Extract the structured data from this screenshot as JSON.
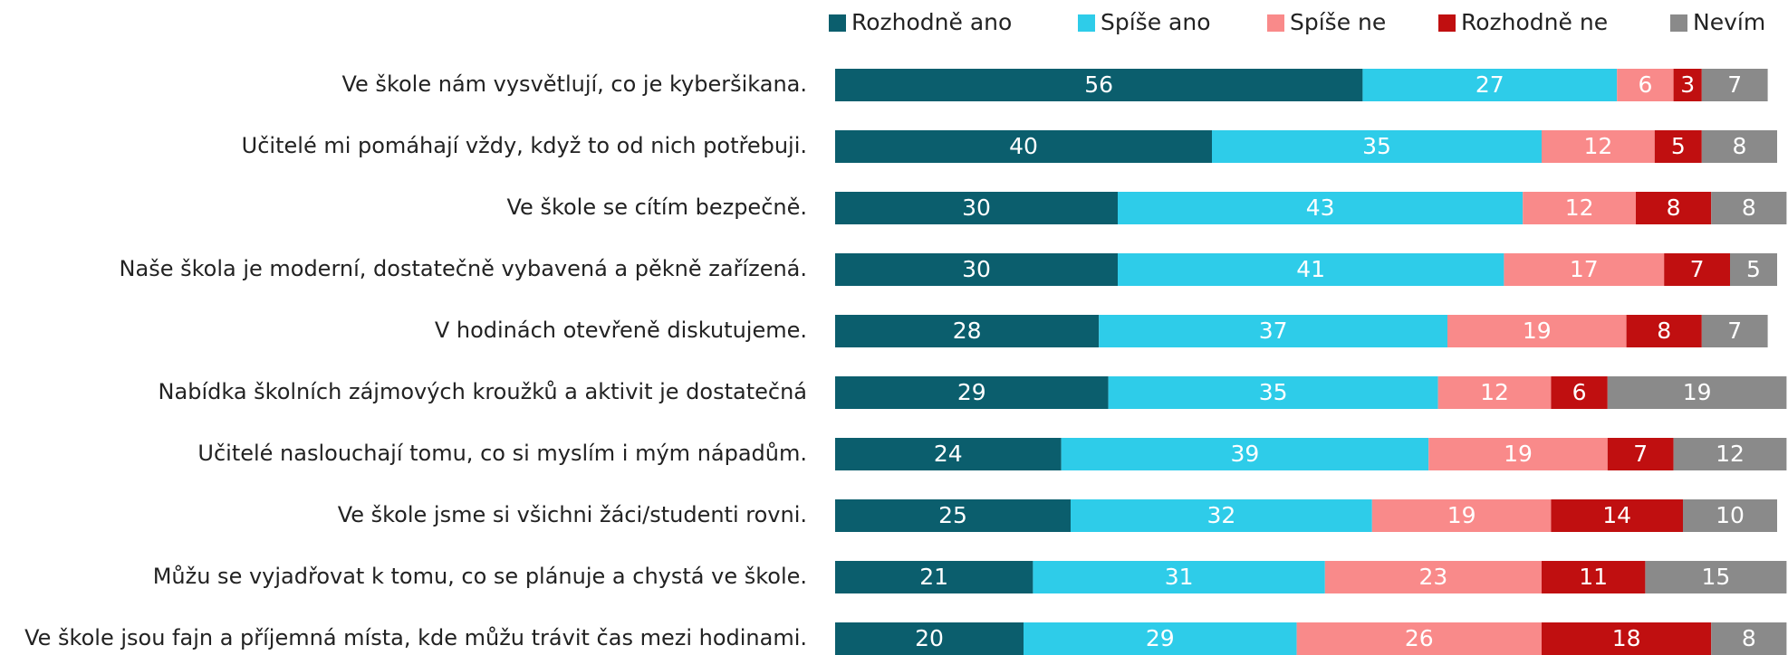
{
  "chart_data": {
    "type": "stacked-bar-horizontal",
    "categories": [
      "Ve škole nám vysvětlují, co je kyberšikana.",
      "Učitelé mi pomáhají vždy, když to od nich potřebuji.",
      "Ve škole se cítím bezpečně.",
      "Naše škola je moderní, dostatečně vybavená a pěkně zařízená.",
      "V hodinách otevřeně diskutujeme.",
      "Nabídka školních zájmových kroužků a aktivit je dostatečná",
      "Učitelé naslouchají tomu, co si myslím i mým nápadům.",
      "Ve škole jsme si všichni žáci/studenti rovni.",
      "Můžu se vyjadřovat k tomu, co se plánuje a chystá ve škole.",
      "Ve škole jsou fajn a příjemná místa, kde můžu trávit čas mezi hodinami."
    ],
    "series": [
      {
        "name": "Rozhodně ano",
        "color": "#0b5e6d",
        "values": [
          56,
          40,
          30,
          30,
          28,
          29,
          24,
          25,
          21,
          20
        ]
      },
      {
        "name": "Spíše ano",
        "color": "#2ecce9",
        "values": [
          27,
          35,
          43,
          41,
          37,
          35,
          39,
          32,
          31,
          29
        ]
      },
      {
        "name": "Spíše ne",
        "color": "#f98a8a",
        "values": [
          6,
          12,
          12,
          17,
          19,
          12,
          19,
          19,
          23,
          26
        ]
      },
      {
        "name": "Rozhodně ne",
        "color": "#c00f10",
        "values": [
          3,
          5,
          8,
          7,
          8,
          6,
          7,
          14,
          11,
          18
        ]
      },
      {
        "name": "Nevím",
        "color": "#8a8a8a",
        "values": [
          7,
          8,
          8,
          5,
          7,
          19,
          12,
          10,
          15,
          8
        ]
      }
    ],
    "legend": "top"
  }
}
